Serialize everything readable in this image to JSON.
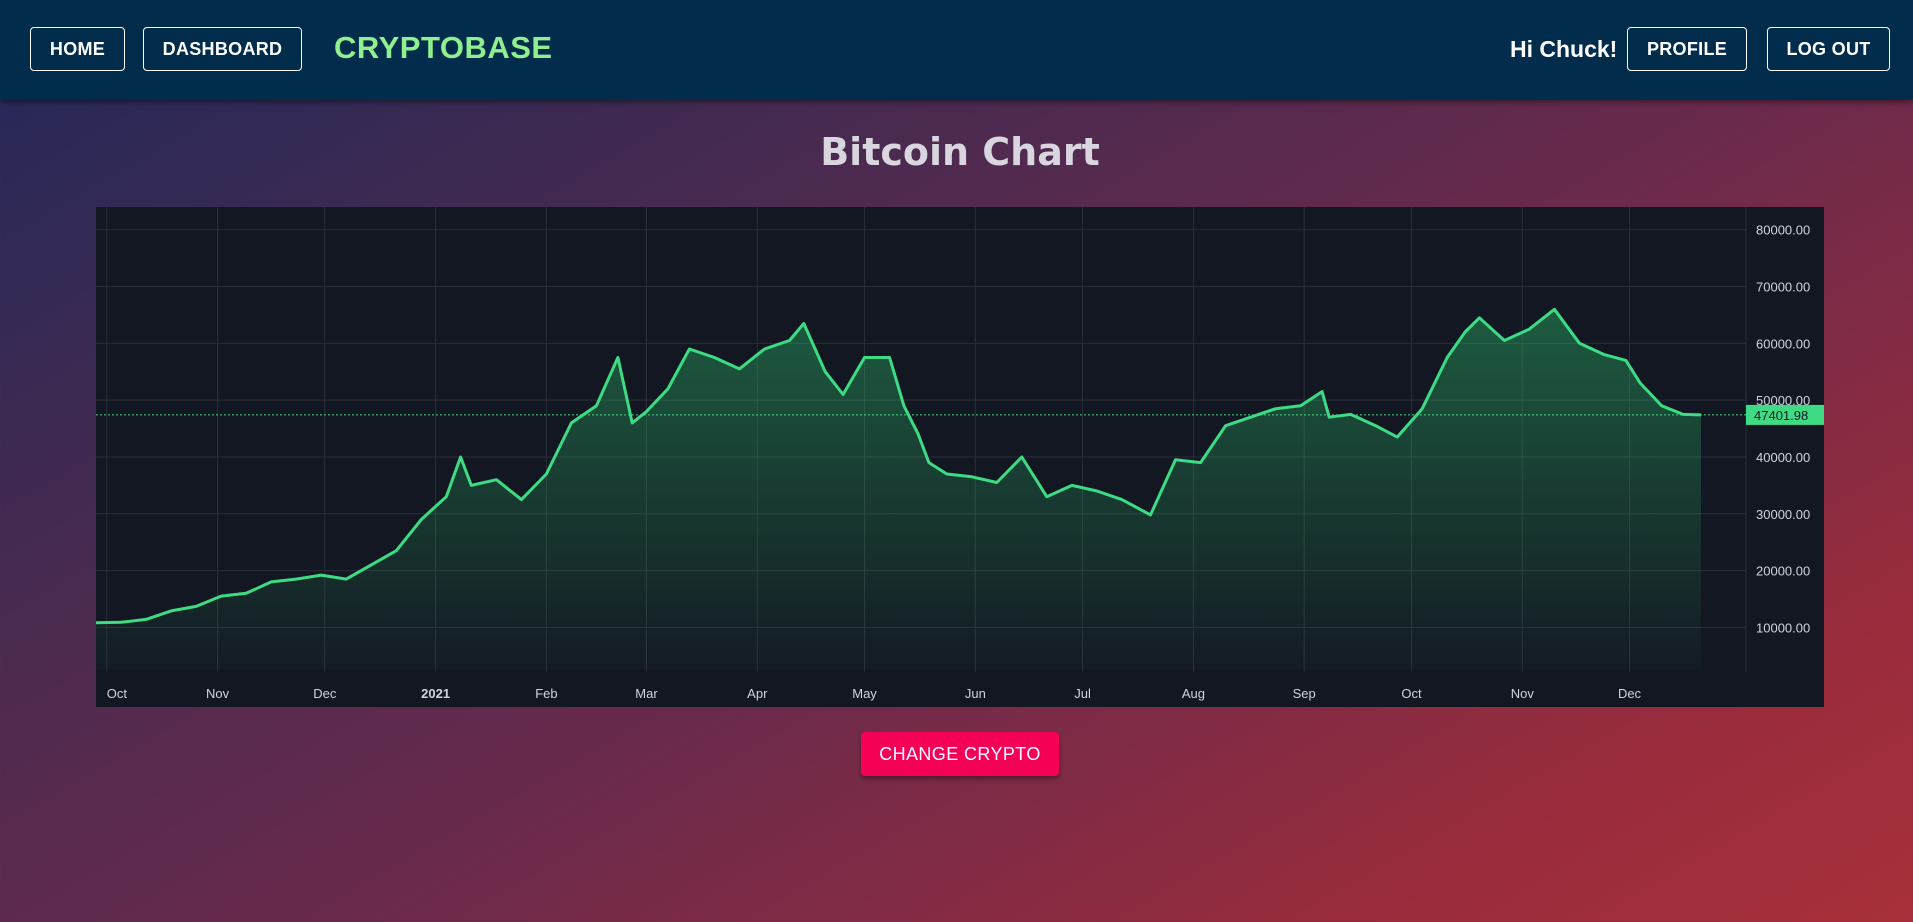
{
  "nav": {
    "home_label": "HOME",
    "dashboard_label": "DASHBOARD",
    "brand": "CRYPTOBASE",
    "greeting": "Hi Chuck!",
    "profile_label": "PROFILE",
    "logout_label": "LOG OUT"
  },
  "page": {
    "title": "Bitcoin Chart",
    "change_button_label": "CHANGE CRYPTO"
  },
  "colors": {
    "navbar": "#022c4b",
    "brand": "#8ff08f",
    "line": "#3ddc84",
    "chart_bg": "#131722",
    "button": "#f50057"
  },
  "chart_data": {
    "type": "area",
    "title": "",
    "xlabel": "",
    "ylabel": "",
    "x_tick_labels": [
      "Oct",
      "Nov",
      "Dec",
      "2021",
      "Feb",
      "Mar",
      "Apr",
      "May",
      "Jun",
      "Jul",
      "Aug",
      "Sep",
      "Oct",
      "Nov",
      "Dec"
    ],
    "y_tick_labels": [
      "80000.00",
      "70000.00",
      "60000.00",
      "50000.00",
      "40000.00",
      "30000.00",
      "20000.00",
      "10000.00"
    ],
    "ylim": [
      2500,
      84000
    ],
    "last_value_label": "47401.98",
    "grid": true,
    "series": [
      {
        "x": [
          "2020-09-28",
          "2020-10-05",
          "2020-10-12",
          "2020-10-19",
          "2020-10-26",
          "2020-11-02",
          "2020-11-09",
          "2020-11-16",
          "2020-11-23",
          "2020-11-30",
          "2020-12-07",
          "2020-12-14",
          "2020-12-21",
          "2020-12-28",
          "2021-01-04",
          "2021-01-08",
          "2021-01-11",
          "2021-01-18",
          "2021-01-25",
          "2021-02-01",
          "2021-02-08",
          "2021-02-15",
          "2021-02-21",
          "2021-02-25",
          "2021-03-01",
          "2021-03-07",
          "2021-03-13",
          "2021-03-20",
          "2021-03-27",
          "2021-04-03",
          "2021-04-10",
          "2021-04-14",
          "2021-04-20",
          "2021-04-25",
          "2021-05-01",
          "2021-05-08",
          "2021-05-12",
          "2021-05-16",
          "2021-05-19",
          "2021-05-24",
          "2021-05-31",
          "2021-06-07",
          "2021-06-14",
          "2021-06-21",
          "2021-06-28",
          "2021-07-05",
          "2021-07-12",
          "2021-07-20",
          "2021-07-27",
          "2021-08-03",
          "2021-08-10",
          "2021-08-17",
          "2021-08-24",
          "2021-08-31",
          "2021-09-06",
          "2021-09-08",
          "2021-09-14",
          "2021-09-21",
          "2021-09-27",
          "2021-10-04",
          "2021-10-11",
          "2021-10-16",
          "2021-10-20",
          "2021-10-27",
          "2021-11-03",
          "2021-11-10",
          "2021-11-17",
          "2021-11-24",
          "2021-11-30",
          "2021-12-04",
          "2021-12-10",
          "2021-12-16",
          "2021-12-21"
        ],
        "values": [
          10800,
          10900,
          11400,
          12900,
          13700,
          15500,
          16000,
          18000,
          18500,
          19200,
          18500,
          21000,
          23500,
          29000,
          33000,
          40000,
          35000,
          36000,
          32500,
          37000,
          46000,
          49000,
          57500,
          46000,
          48000,
          52000,
          59000,
          57500,
          55500,
          59000,
          60500,
          63500,
          55000,
          51000,
          57500,
          57500,
          49000,
          44000,
          39000,
          37000,
          36500,
          35500,
          40000,
          33000,
          35000,
          34000,
          32500,
          29800,
          39500,
          39000,
          45500,
          47000,
          48500,
          49000,
          51500,
          47000,
          47500,
          45500,
          43500,
          48500,
          57500,
          62000,
          64500,
          60500,
          62500,
          66000,
          60000,
          58000,
          57000,
          53000,
          49000,
          47500,
          47402
        ]
      }
    ]
  }
}
